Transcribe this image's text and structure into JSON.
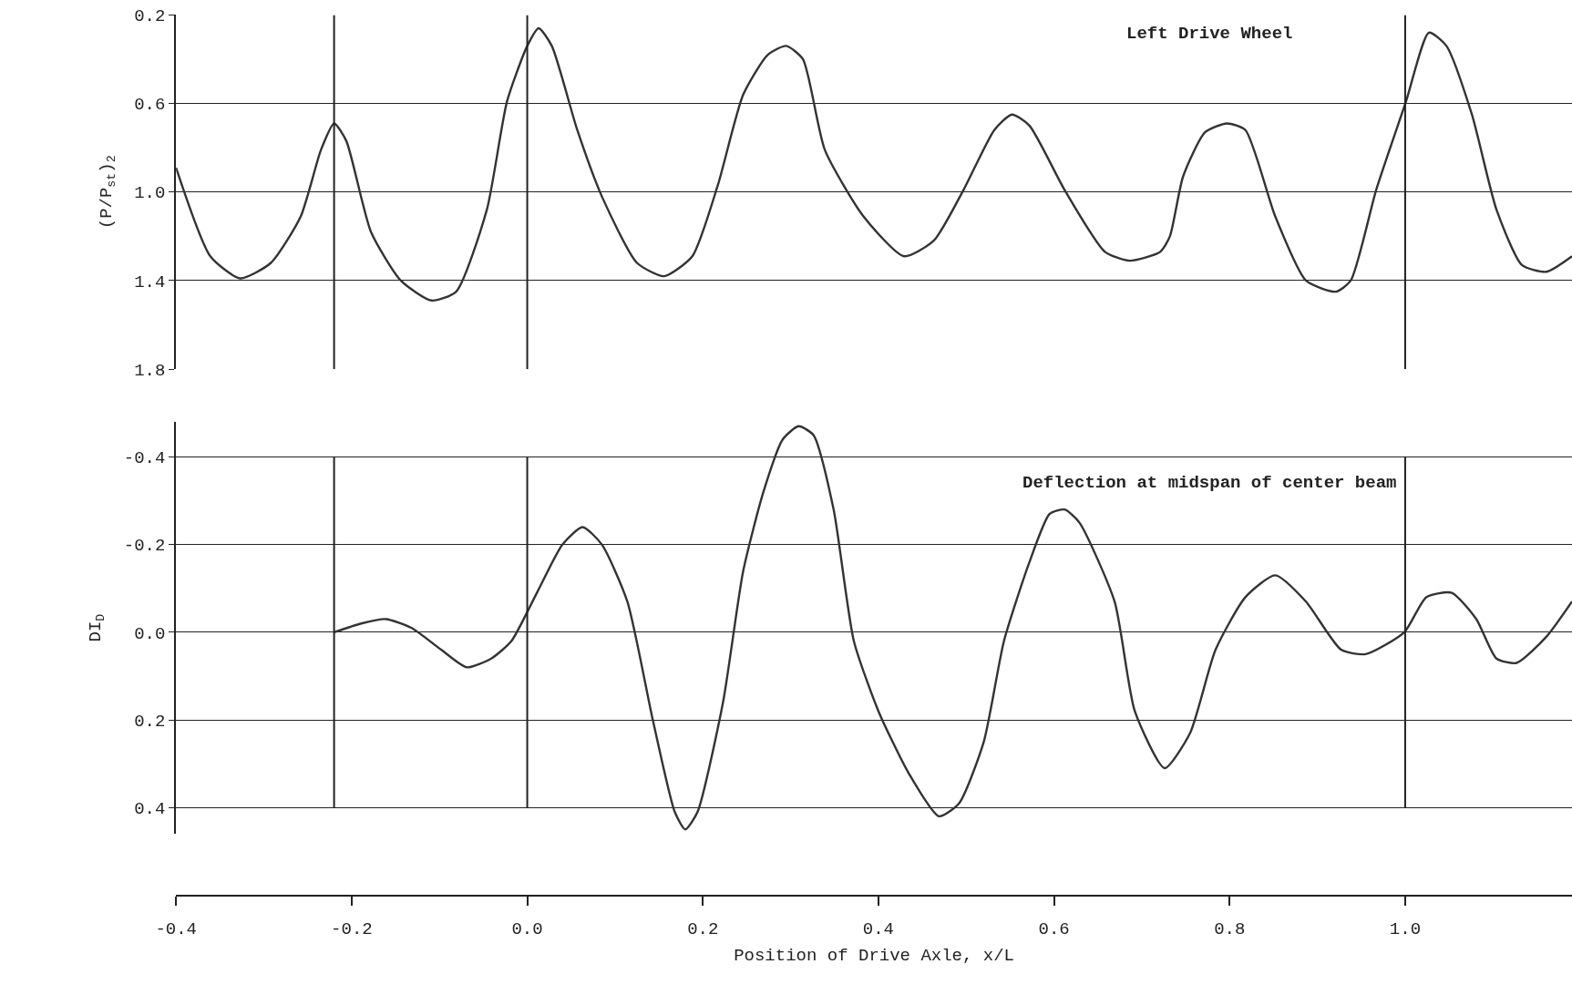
{
  "chart_data": [
    {
      "type": "line",
      "ylabel": "(P/P$_{st}$)$_{2}$",
      "annotations": [
        "Left Drive Wheel"
      ],
      "xlim": [
        -0.4,
        1.19
      ],
      "ylim": [
        1.8,
        0.2
      ],
      "yticks": [
        {
          "value": 0.2,
          "label": "0.2"
        },
        {
          "value": 0.6,
          "label": "0.6"
        },
        {
          "value": 1.0,
          "label": "1.0"
        },
        {
          "value": 1.4,
          "label": "1.4"
        },
        {
          "value": 1.8,
          "label": "1.8"
        }
      ],
      "tick_labels": "y",
      "grid": "y",
      "ref_lines": [
        {
          "axis": "x",
          "value": -0.22,
          "color": "#222222"
        },
        {
          "axis": "x",
          "value": 0.0,
          "color": "#222222"
        },
        {
          "axis": "x",
          "value": 1.0,
          "color": "#222222"
        }
      ],
      "series": [
        {
          "color": "#333333",
          "x": [
            -0.4,
            -0.361,
            -0.327,
            -0.292,
            -0.258,
            -0.235,
            -0.22,
            -0.206,
            -0.178,
            -0.144,
            -0.109,
            -0.081,
            -0.046,
            -0.023,
            0.0,
            0.013,
            0.028,
            0.057,
            0.085,
            0.125,
            0.156,
            0.188,
            0.217,
            0.246,
            0.274,
            0.295,
            0.314,
            0.339,
            0.383,
            0.429,
            0.463,
            0.497,
            0.532,
            0.552,
            0.572,
            0.612,
            0.658,
            0.686,
            0.721,
            0.732,
            0.747,
            0.772,
            0.797,
            0.818,
            0.852,
            0.887,
            0.921,
            0.938,
            0.967,
            1.001,
            1.027,
            1.047,
            1.076,
            1.104,
            1.133,
            1.161,
            1.19
          ],
          "values": [
            0.89,
            1.29,
            1.39,
            1.32,
            1.11,
            0.81,
            0.69,
            0.77,
            1.18,
            1.4,
            1.49,
            1.45,
            1.08,
            0.59,
            0.34,
            0.26,
            0.34,
            0.72,
            1.02,
            1.32,
            1.38,
            1.29,
            0.97,
            0.56,
            0.38,
            0.34,
            0.4,
            0.81,
            1.11,
            1.29,
            1.22,
            0.99,
            0.72,
            0.65,
            0.7,
            0.99,
            1.27,
            1.31,
            1.27,
            1.2,
            0.93,
            0.73,
            0.69,
            0.72,
            1.11,
            1.4,
            1.45,
            1.4,
            0.99,
            0.59,
            0.28,
            0.34,
            0.65,
            1.08,
            1.33,
            1.36,
            1.29
          ]
        }
      ]
    },
    {
      "type": "line",
      "xlabel": "Position of Drive Axle, x/L",
      "ylabel": "DI$_{D}$",
      "annotations": [
        "Deflection at midspan of center beam"
      ],
      "xlim": [
        -0.4,
        1.19
      ],
      "ylim": [
        0.46,
        -0.48
      ],
      "xticks": [
        {
          "value": -0.4,
          "label": "-0.4"
        },
        {
          "value": -0.2,
          "label": "-0.2"
        },
        {
          "value": 0.0,
          "label": "0.0"
        },
        {
          "value": 0.2,
          "label": "0.2"
        },
        {
          "value": 0.4,
          "label": "0.4"
        },
        {
          "value": 0.6,
          "label": "0.6"
        },
        {
          "value": 0.8,
          "label": "0.8"
        },
        {
          "value": 1.0,
          "label": "1.0"
        }
      ],
      "yticks": [
        -0.4,
        -0.2,
        {
          "value": 0.0,
          "label": "0.0"
        },
        0.2,
        0.4
      ],
      "grid": "y",
      "ref_lines": [
        {
          "axis": "x",
          "value": -0.22,
          "color": "#222222"
        },
        {
          "axis": "x",
          "value": 0.0,
          "color": "#222222"
        },
        {
          "axis": "x",
          "value": 1.0,
          "color": "#222222"
        }
      ],
      "series": [
        {
          "color": "#333333",
          "x": [
            -0.22,
            -0.189,
            -0.161,
            -0.132,
            -0.098,
            -0.069,
            -0.041,
            -0.018,
            0.011,
            0.04,
            0.063,
            0.085,
            0.114,
            0.143,
            0.168,
            0.18,
            0.194,
            0.223,
            0.246,
            0.269,
            0.291,
            0.309,
            0.326,
            0.349,
            0.372,
            0.4,
            0.434,
            0.469,
            0.492,
            0.52,
            0.543,
            0.572,
            0.595,
            0.612,
            0.629,
            0.669,
            0.692,
            0.726,
            0.755,
            0.784,
            0.818,
            0.852,
            0.887,
            0.927,
            0.955,
            0.999,
            1.024,
            1.053,
            1.081,
            1.104,
            1.127,
            1.161,
            1.19
          ],
          "values": [
            0.0,
            -0.02,
            -0.03,
            -0.01,
            0.04,
            0.08,
            0.06,
            0.02,
            -0.09,
            -0.2,
            -0.24,
            -0.2,
            -0.07,
            0.2,
            0.41,
            0.45,
            0.41,
            0.16,
            -0.14,
            -0.32,
            -0.44,
            -0.47,
            -0.45,
            -0.28,
            0.02,
            0.18,
            0.32,
            0.42,
            0.39,
            0.25,
            0.02,
            -0.16,
            -0.27,
            -0.28,
            -0.25,
            -0.07,
            0.18,
            0.31,
            0.23,
            0.04,
            -0.08,
            -0.13,
            -0.07,
            0.04,
            0.05,
            0.0,
            -0.08,
            -0.09,
            -0.03,
            0.06,
            0.07,
            0.01,
            -0.07
          ]
        }
      ]
    }
  ]
}
